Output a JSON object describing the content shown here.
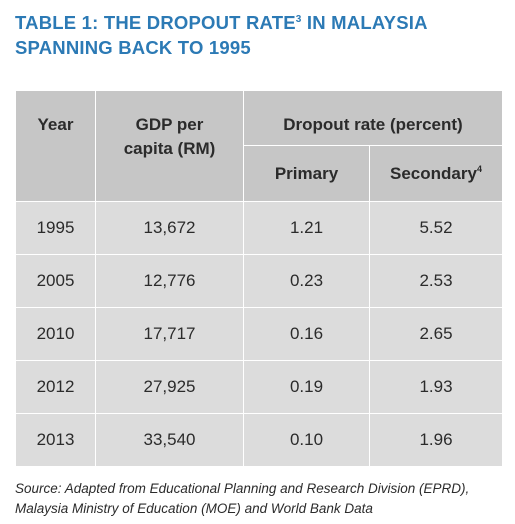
{
  "title": {
    "line1_prefix": "TABLE 1: THE DROPOUT RATE",
    "line1_sup": "3",
    "line1_suffix": " IN MALAYSIA",
    "line2": "SPANNING BACK TO 1995"
  },
  "table": {
    "headers": {
      "year": "Year",
      "gdp_line1": "GDP per",
      "gdp_line2": "capita (RM)",
      "dropout": "Dropout rate (percent)",
      "primary": "Primary",
      "secondary": "Secondary",
      "secondary_sup": "4"
    },
    "rows": [
      {
        "year": "1995",
        "gdp": "13,672",
        "primary": "1.21",
        "secondary": "5.52"
      },
      {
        "year": "2005",
        "gdp": "12,776",
        "primary": "0.23",
        "secondary": "2.53"
      },
      {
        "year": "2010",
        "gdp": "17,717",
        "primary": "0.16",
        "secondary": "2.65"
      },
      {
        "year": "2012",
        "gdp": "27,925",
        "primary": "0.19",
        "secondary": "1.93"
      },
      {
        "year": "2013",
        "gdp": "33,540",
        "primary": "0.10",
        "secondary": "1.96"
      }
    ]
  },
  "source": {
    "line1": "Source: Adapted from Educational Planning and Research Division (EPRD),",
    "line2": "Malaysia Ministry of Education (MOE) and World Bank Data"
  },
  "colors": {
    "title": "#2c7ab5",
    "header_bg": "#c6c6c6",
    "cell_bg": "#dcdcdc"
  }
}
